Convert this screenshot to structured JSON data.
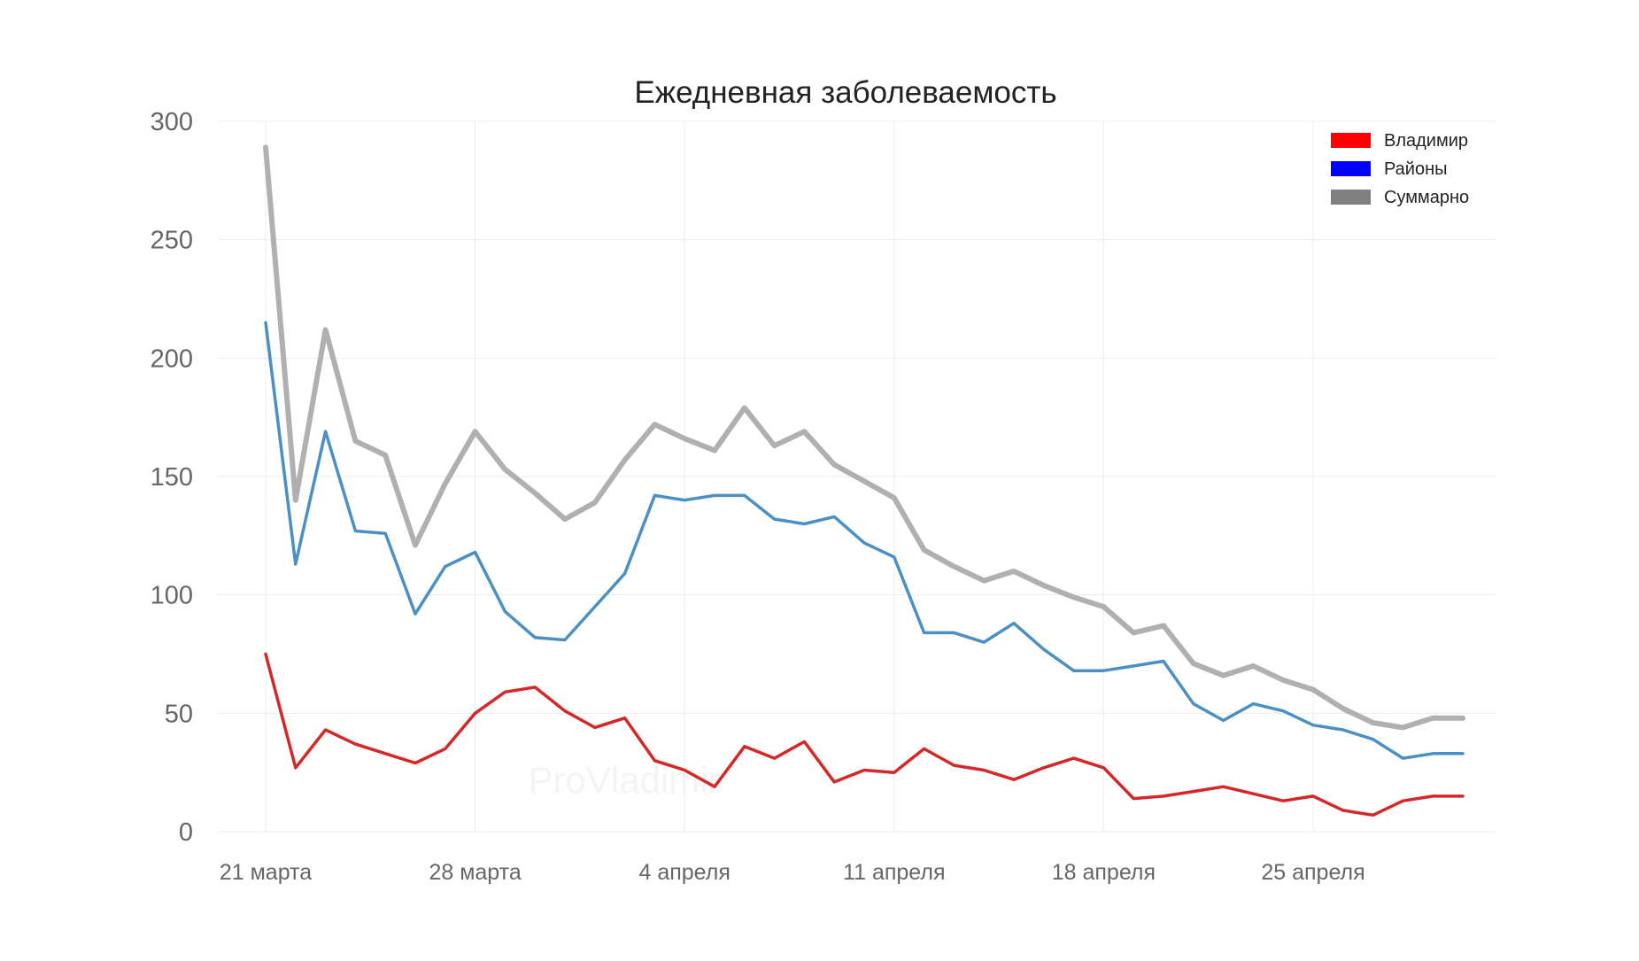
{
  "chart_data": {
    "type": "line",
    "title": "Ежедневная заболеваемость",
    "xlabel": "",
    "ylabel": "",
    "ylim": [
      0,
      300
    ],
    "yticks": [
      0,
      50,
      100,
      150,
      200,
      250,
      300
    ],
    "x_start_date": "2020-03-21",
    "x_dates": [
      "2020-03-21",
      "2020-03-22",
      "2020-03-23",
      "2020-03-24",
      "2020-03-25",
      "2020-03-26",
      "2020-03-27",
      "2020-03-28",
      "2020-03-29",
      "2020-03-30",
      "2020-03-31",
      "2020-04-01",
      "2020-04-02",
      "2020-04-03",
      "2020-04-04",
      "2020-04-05",
      "2020-04-06",
      "2020-04-07",
      "2020-04-08",
      "2020-04-09",
      "2020-04-10",
      "2020-04-11",
      "2020-04-12",
      "2020-04-13",
      "2020-04-14",
      "2020-04-15",
      "2020-04-16",
      "2020-04-17",
      "2020-04-18",
      "2020-04-19",
      "2020-04-20",
      "2020-04-21",
      "2020-04-22",
      "2020-04-23",
      "2020-04-24",
      "2020-04-25",
      "2020-04-26",
      "2020-04-27",
      "2020-04-28",
      "2020-04-29",
      "2020-04-30"
    ],
    "x_ticks": [
      {
        "date": "2020-03-21",
        "label": "21 марта"
      },
      {
        "date": "2020-03-28",
        "label": "28 марта"
      },
      {
        "date": "2020-04-04",
        "label": "4 апреля"
      },
      {
        "date": "2020-04-11",
        "label": "11 апреля"
      },
      {
        "date": "2020-04-18",
        "label": "18 апреля"
      },
      {
        "date": "2020-04-25",
        "label": "25 апреля"
      }
    ],
    "grid": true,
    "legend_position": "top-right",
    "series": [
      {
        "name": "Суммарно",
        "color": "#b0b0b0",
        "legend_color": "#808080",
        "values": [
          289,
          140,
          212,
          165,
          159,
          121,
          147,
          169,
          153,
          143,
          132,
          139,
          157,
          172,
          166,
          161,
          179,
          163,
          169,
          155,
          148,
          141,
          119,
          112,
          106,
          110,
          104,
          99,
          95,
          84,
          87,
          71,
          66,
          70,
          64,
          60,
          52,
          46,
          44,
          48,
          48
        ]
      },
      {
        "name": "Районы",
        "color": "#4a90c4",
        "legend_color": "#0000ff",
        "values": [
          215,
          113,
          169,
          127,
          126,
          92,
          112,
          118,
          93,
          82,
          81,
          95,
          109,
          142,
          140,
          142,
          142,
          132,
          130,
          133,
          122,
          116,
          84,
          84,
          80,
          88,
          77,
          68,
          68,
          70,
          72,
          54,
          47,
          54,
          51,
          45,
          43,
          39,
          31,
          33,
          33
        ]
      },
      {
        "name": "Владимир",
        "color": "#d62728",
        "legend_color": "#ff0000",
        "values": [
          75,
          27,
          43,
          37,
          33,
          29,
          35,
          50,
          59,
          61,
          51,
          44,
          48,
          30,
          26,
          19,
          36,
          31,
          38,
          21,
          26,
          25,
          35,
          28,
          26,
          22,
          27,
          31,
          27,
          14,
          15,
          17,
          19,
          16,
          13,
          15,
          9,
          7,
          13,
          15,
          15
        ]
      }
    ],
    "legend_order": [
      "Владимир",
      "Районы",
      "Суммарно"
    ],
    "watermark": "ProVladimir"
  }
}
